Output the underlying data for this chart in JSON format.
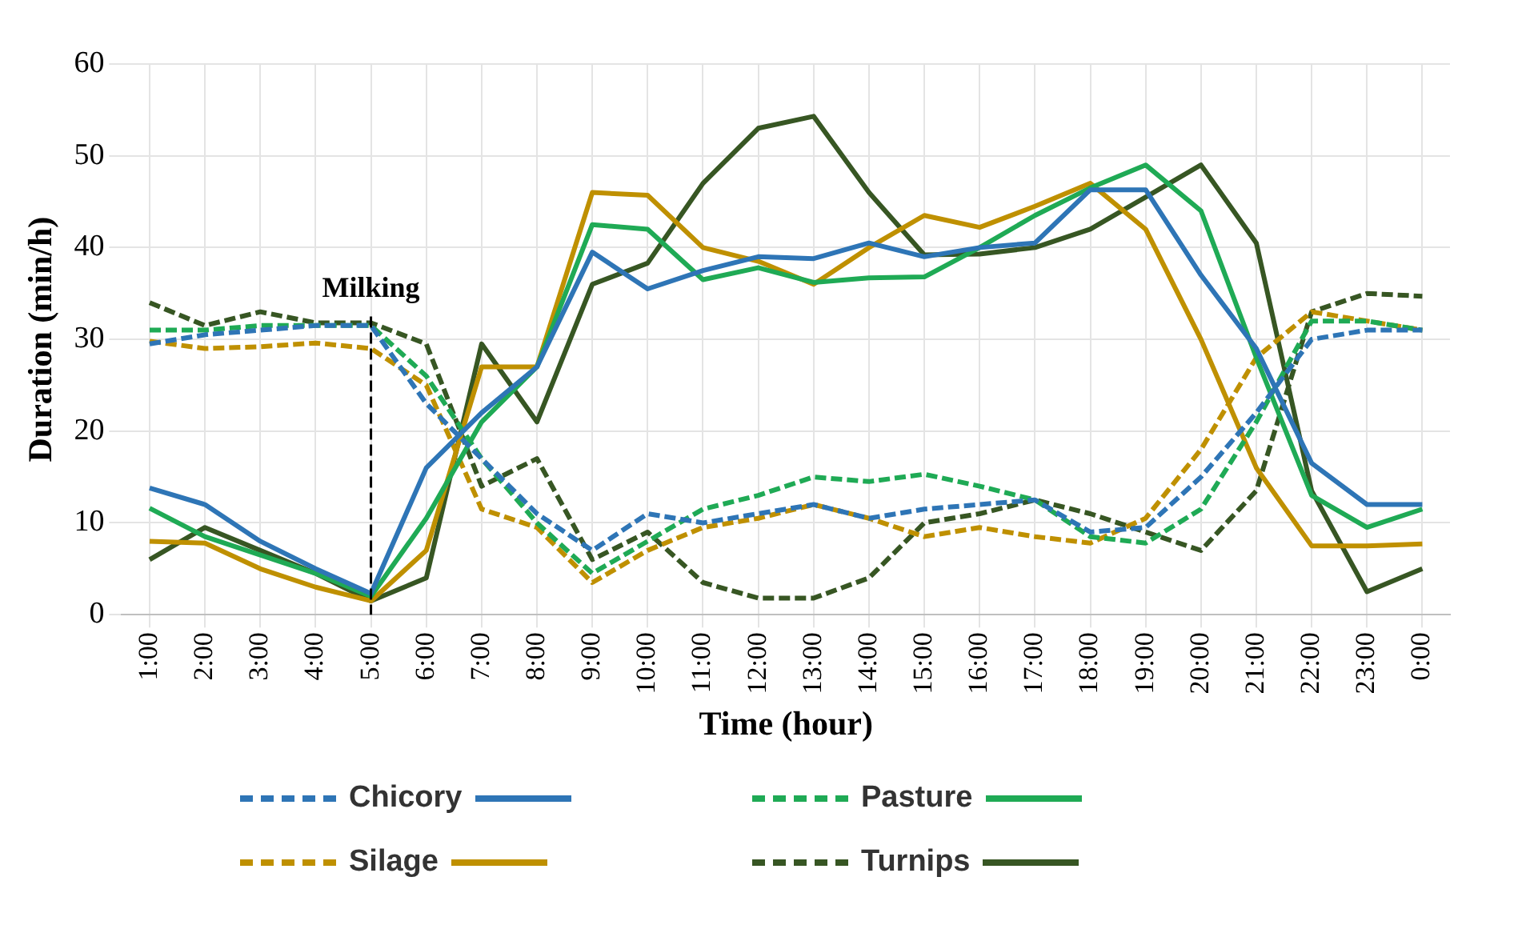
{
  "chart_data": {
    "type": "line",
    "xlabel": "Time (hour)",
    "ylabel": "Duration (min/h)",
    "categories": [
      "1:00",
      "2:00",
      "3:00",
      "4:00",
      "5:00",
      "6:00",
      "7:00",
      "8:00",
      "9:00",
      "10:00",
      "11:00",
      "12:00",
      "13:00",
      "14:00",
      "15:00",
      "16:00",
      "17:00",
      "18:00",
      "19:00",
      "20:00",
      "21:00",
      "22:00",
      "23:00",
      "0:00"
    ],
    "ylim": [
      0,
      60
    ],
    "yticks": [
      0,
      10,
      20,
      30,
      40,
      50,
      60
    ],
    "grid": true,
    "legend": "bottom",
    "marker": "none",
    "ref_lines": [
      {
        "axis": "x",
        "value": "5:00",
        "label": "Milking",
        "color": "#000000",
        "line_style": "dashed"
      }
    ],
    "series": [
      {
        "name": "Chicory",
        "color": "#2e75b6",
        "line_style": "dashed",
        "values": [
          29.5,
          30.5,
          31,
          31.5,
          31.5,
          23,
          17,
          11,
          7,
          11,
          10,
          11,
          12,
          10.5,
          11.5,
          12,
          12.5,
          9,
          9.5,
          15,
          22,
          30,
          31,
          31
        ]
      },
      {
        "color": "#2e75b6",
        "line_style": "solid",
        "values": [
          13.8,
          12,
          8,
          5,
          2.3,
          16,
          22,
          27,
          39.5,
          35.5,
          37.5,
          39,
          38.8,
          40.5,
          39,
          40,
          40.5,
          46.3,
          46.3,
          37,
          29,
          16.5,
          12,
          12
        ]
      },
      {
        "name": "Pasture",
        "color": "#1faa55",
        "line_style": "dashed",
        "values": [
          31,
          31,
          31.5,
          31.5,
          31.5,
          26,
          17,
          10,
          4.5,
          8,
          11.5,
          13,
          15,
          14.5,
          15.3,
          14,
          12.5,
          8.5,
          7.8,
          11.5,
          21,
          32,
          32,
          31
        ]
      },
      {
        "color": "#1faa55",
        "line_style": "solid",
        "values": [
          11.6,
          8.5,
          6.5,
          4.5,
          2,
          10.5,
          21,
          27,
          42.5,
          42,
          36.5,
          37.8,
          36.2,
          36.7,
          36.8,
          40,
          43.5,
          46.5,
          49,
          44,
          28,
          13,
          9.5,
          11.5
        ]
      },
      {
        "name": "Silage",
        "color": "#bf9000",
        "line_style": "dashed",
        "values": [
          29.8,
          29,
          29.2,
          29.6,
          29,
          25,
          11.5,
          9.5,
          3.5,
          7,
          9.5,
          10.5,
          12,
          10.5,
          8.5,
          9.5,
          8.5,
          7.8,
          10.5,
          18,
          28,
          33,
          32,
          31
        ]
      },
      {
        "color": "#bf9000",
        "line_style": "solid",
        "values": [
          8,
          7.8,
          5,
          3,
          1.5,
          7,
          27,
          27,
          46,
          45.7,
          40,
          38.5,
          36,
          40,
          43.5,
          42.2,
          44.5,
          47,
          42,
          30,
          16,
          7.5,
          7.5,
          7.7
        ]
      },
      {
        "name": "Turnips",
        "color": "#375623",
        "line_style": "dashed",
        "values": [
          34,
          31.5,
          33,
          31.8,
          31.8,
          29.5,
          14,
          17,
          6,
          9,
          3.5,
          1.8,
          1.8,
          4,
          10,
          11,
          12.5,
          11,
          9,
          7,
          13.5,
          33,
          35,
          34.7
        ]
      },
      {
        "color": "#375623",
        "line_style": "solid",
        "values": [
          6,
          9.5,
          7,
          4.5,
          1.5,
          4,
          29.5,
          21,
          36,
          38.3,
          47,
          53,
          54.3,
          46,
          39.2,
          39.3,
          40,
          42,
          45.5,
          49,
          40.5,
          13.5,
          2.5,
          5
        ]
      }
    ]
  }
}
